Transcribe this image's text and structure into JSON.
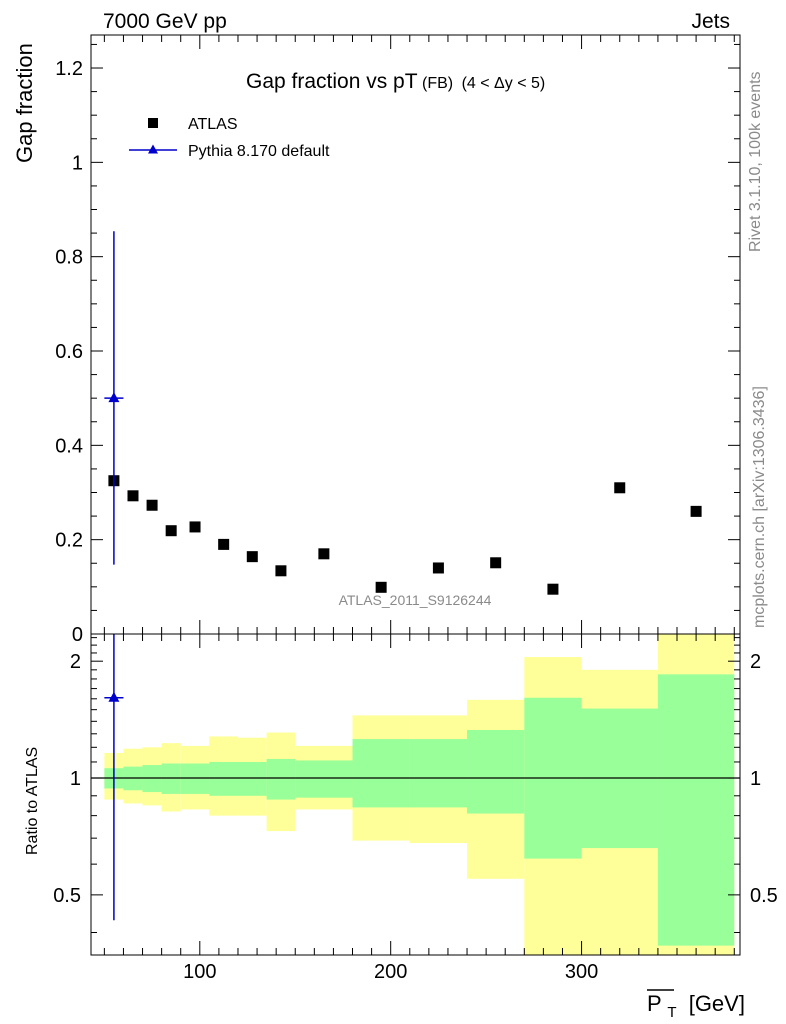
{
  "header": {
    "left": "7000 GeV pp",
    "right": "Jets"
  },
  "side_labels": {
    "top": "Rivet 3.1.10,  100k events",
    "bottom": "mcplots.cern.ch [arXiv:1306.3436]"
  },
  "chart_data": [
    {
      "type": "scatter",
      "title": "Gap fraction vs pT",
      "title_suffix": "(FB)",
      "title_cut": "(4 < Δy < 5)",
      "ylabel": "Gap fraction",
      "xlim": [
        43,
        383
      ],
      "ylim": [
        0,
        1.27
      ],
      "yticks": [
        0,
        0.2,
        0.4,
        0.6,
        0.8,
        1,
        1.2
      ],
      "ytick_labels": [
        "0",
        "0.2",
        "0.4",
        "0.6",
        "0.8",
        "1",
        "1.2"
      ],
      "watermark": "ATLAS_2011_S9126244",
      "legend_position": "top-left",
      "series": [
        {
          "name": "ATLAS",
          "marker": "square",
          "color": "#000000",
          "x": [
            55,
            65,
            75,
            85,
            97.5,
            112.5,
            127.5,
            142.5,
            165,
            195,
            225,
            255,
            285,
            320,
            360
          ],
          "y": [
            0.325,
            0.293,
            0.273,
            0.219,
            0.227,
            0.19,
            0.164,
            0.134,
            0.17,
            0.099,
            0.14,
            0.151,
            0.095,
            0.31,
            0.26
          ]
        },
        {
          "name": "Pythia 8.170 default",
          "marker": "triangle",
          "color": "#0000cc",
          "x": [
            55
          ],
          "y": [
            0.5
          ],
          "y_err_low": [
            0.147
          ],
          "y_err_high": [
            0.854
          ],
          "x_err_low": [
            50
          ],
          "x_err_high": [
            60
          ]
        }
      ]
    },
    {
      "type": "area",
      "ylabel": "Ratio to ATLAS",
      "xlabel": "P_T [GeV]",
      "xlabel_main": "P",
      "xlabel_sub": "T",
      "xlabel_unit": "[GeV]",
      "xlim": [
        43,
        383
      ],
      "ylim": [
        0.35,
        2.35
      ],
      "xticks": [
        100,
        200,
        300
      ],
      "xtick_labels": [
        "100",
        "200",
        "300"
      ],
      "yticks": [
        0.5,
        1,
        2
      ],
      "ytick_labels": [
        "0.5",
        "1",
        "2"
      ],
      "reference_line": 1,
      "bands": {
        "bins": [
          [
            50,
            60
          ],
          [
            60,
            70
          ],
          [
            70,
            80
          ],
          [
            80,
            90
          ],
          [
            90,
            105
          ],
          [
            105,
            120
          ],
          [
            120,
            135
          ],
          [
            135,
            150
          ],
          [
            150,
            180
          ],
          [
            180,
            210
          ],
          [
            210,
            240
          ],
          [
            240,
            270
          ],
          [
            270,
            300
          ],
          [
            300,
            340
          ],
          [
            340,
            380
          ]
        ],
        "stat_color": "#99ff99",
        "total_color": "#ffff99",
        "stat_low": [
          0.94,
          0.93,
          0.92,
          0.91,
          0.91,
          0.9,
          0.9,
          0.88,
          0.89,
          0.84,
          0.84,
          0.81,
          0.62,
          0.66,
          0.37
        ],
        "stat_high": [
          1.06,
          1.07,
          1.08,
          1.09,
          1.09,
          1.1,
          1.1,
          1.12,
          1.11,
          1.26,
          1.26,
          1.33,
          1.61,
          1.51,
          1.85
        ],
        "total_low": [
          0.88,
          0.86,
          0.85,
          0.82,
          0.83,
          0.8,
          0.8,
          0.73,
          0.83,
          0.69,
          0.68,
          0.55,
          0.35,
          0.35,
          0.35
        ],
        "total_high": [
          1.16,
          1.19,
          1.2,
          1.23,
          1.21,
          1.28,
          1.27,
          1.31,
          1.21,
          1.45,
          1.45,
          1.59,
          2.05,
          1.9,
          2.35
        ]
      },
      "series": [
        {
          "name": "Pythia 8.170 default",
          "marker": "triangle",
          "color": "#0000cc",
          "x": [
            55
          ],
          "y": [
            1.61
          ],
          "y_err_low": [
            0.43
          ],
          "y_err_high": [
            2.35
          ],
          "x_err_low": [
            50
          ],
          "x_err_high": [
            60
          ]
        }
      ]
    }
  ]
}
